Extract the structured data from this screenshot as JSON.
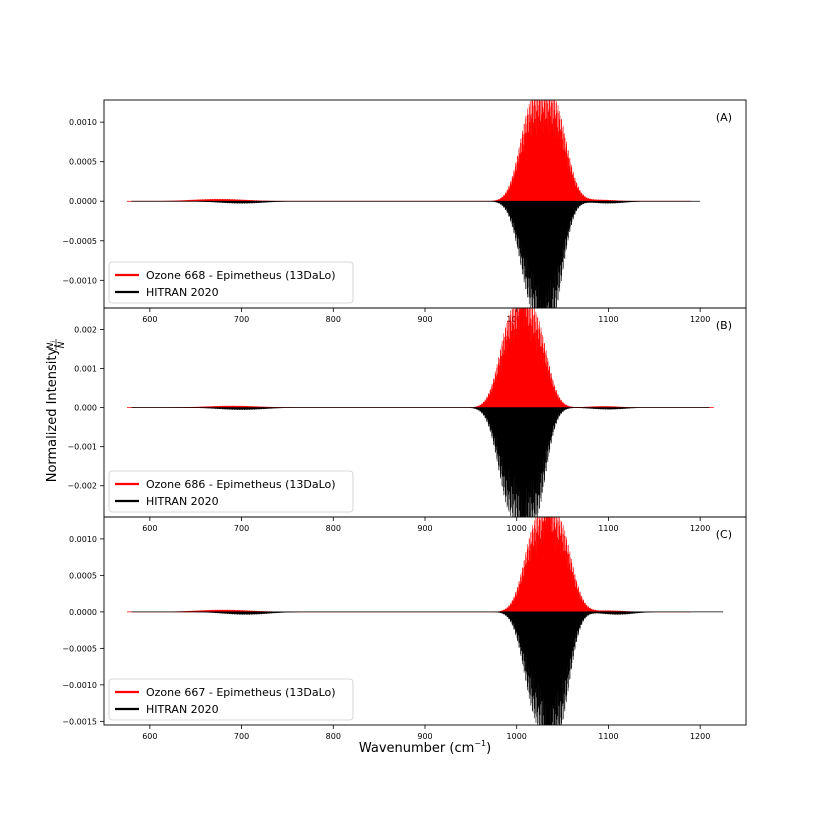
{
  "figure": {
    "ylabel_main": "Normalized Intensity, ",
    "ylabel_num": "N",
    "ylabel_num_sub": "i",
    "ylabel_den": "N",
    "xlabel_main": "Wavenumber (cm",
    "xlabel_sup": "−1",
    "xlabel_close": ")"
  },
  "chart_data": [
    {
      "type": "line",
      "panel_label": "(A)",
      "xlim": [
        550,
        1250
      ],
      "ylim": [
        -0.00135,
        0.00128
      ],
      "x_ticks": [
        600,
        700,
        800,
        900,
        1000,
        1100,
        1200
      ],
      "x_tick_labels": [
        "600",
        "700",
        "800",
        "900",
        "1000",
        "1100",
        "1200"
      ],
      "y_ticks": [
        0.001,
        0.0005,
        0.0,
        -0.0005,
        -0.001
      ],
      "y_tick_labels": [
        "0.0010",
        "0.0005",
        "0.0000",
        "−0.0005",
        "−0.0010"
      ],
      "legend_position": "lower-left",
      "series": [
        {
          "name": "Ozone 668 - Epimetheus (13DaLo)",
          "color": "#ff0000",
          "sign": 1,
          "x_range": [
            575,
            1190
          ],
          "bands": [
            {
              "center": 1016,
              "width": 13,
              "peak": 0.00115
            },
            {
              "center": 1042,
              "width": 13,
              "peak": 0.00115
            },
            {
              "center": 675,
              "width": 30,
              "peak": 3e-05
            },
            {
              "center": 1090,
              "width": 18,
              "peak": 2e-05
            }
          ]
        },
        {
          "name": "HITRAN 2020",
          "color": "#000000",
          "sign": -1,
          "x_range": [
            580,
            1200
          ],
          "bands": [
            {
              "center": 1016,
              "width": 13,
              "peak": 0.00118
            },
            {
              "center": 1039,
              "width": 12,
              "peak": 0.00133
            },
            {
              "center": 1028,
              "width": 3,
              "peak": 0.0004
            },
            {
              "center": 700,
              "width": 25,
              "peak": 3e-05
            },
            {
              "center": 1100,
              "width": 18,
              "peak": 3e-05
            }
          ]
        }
      ]
    },
    {
      "type": "line",
      "panel_label": "(B)",
      "xlim": [
        550,
        1250
      ],
      "ylim": [
        -0.0028,
        0.00255
      ],
      "x_ticks": [
        600,
        700,
        800,
        900,
        1000,
        1100,
        1200
      ],
      "x_tick_labels": [
        "600",
        "700",
        "800",
        "900",
        "1000",
        "1100",
        "1200"
      ],
      "y_ticks": [
        0.002,
        0.001,
        0.0,
        -0.001,
        -0.002
      ],
      "y_tick_labels": [
        "0.002",
        "0.001",
        "0.000",
        "−0.001",
        "−0.002"
      ],
      "legend_position": "lower-left",
      "series": [
        {
          "name": "Ozone 686 - Epimetheus (13DaLo)",
          "color": "#ff0000",
          "sign": 1,
          "x_range": [
            575,
            1215
          ],
          "bands": [
            {
              "center": 994,
              "width": 13,
              "peak": 0.00222
            },
            {
              "center": 1020,
              "width": 13,
              "peak": 0.00222
            },
            {
              "center": 1007,
              "width": 3,
              "peak": 0.0009
            },
            {
              "center": 690,
              "width": 30,
              "peak": 5e-05
            },
            {
              "center": 1095,
              "width": 18,
              "peak": 4e-05
            }
          ]
        },
        {
          "name": "HITRAN 2020",
          "color": "#000000",
          "sign": -1,
          "x_range": [
            580,
            1210
          ],
          "bands": [
            {
              "center": 993,
              "width": 13,
              "peak": 0.00255
            },
            {
              "center": 1020,
              "width": 12,
              "peak": 0.0027
            },
            {
              "center": 1007,
              "width": 3,
              "peak": 0.0009
            },
            {
              "center": 700,
              "width": 25,
              "peak": 6e-05
            },
            {
              "center": 1100,
              "width": 18,
              "peak": 5e-05
            }
          ]
        }
      ]
    },
    {
      "type": "line",
      "panel_label": "(C)",
      "xlim": [
        550,
        1250
      ],
      "ylim": [
        -0.00155,
        0.0013
      ],
      "x_ticks": [
        600,
        700,
        800,
        900,
        1000,
        1100,
        1200
      ],
      "x_tick_labels": [
        "600",
        "700",
        "800",
        "900",
        "1000",
        "1100",
        "1200"
      ],
      "y_ticks": [
        0.001,
        0.0005,
        0.0,
        -0.0005,
        -0.001,
        -0.0015
      ],
      "y_tick_labels": [
        "0.0010",
        "0.0005",
        "0.0000",
        "−0.0005",
        "−0.0010",
        "−0.0015"
      ],
      "legend_position": "lower-left",
      "series": [
        {
          "name": "Ozone 667 - Epimetheus (13DaLo)",
          "color": "#ff0000",
          "sign": 1,
          "x_range": [
            575,
            1190
          ],
          "bands": [
            {
              "center": 1021,
              "width": 13,
              "peak": 0.00115
            },
            {
              "center": 1047,
              "width": 13,
              "peak": 0.00115
            },
            {
              "center": 1034,
              "width": 3,
              "peak": 0.0004
            },
            {
              "center": 680,
              "width": 30,
              "peak": 3e-05
            },
            {
              "center": 1100,
              "width": 18,
              "peak": 2e-05
            }
          ]
        },
        {
          "name": "HITRAN 2020",
          "color": "#000000",
          "sign": -1,
          "x_range": [
            580,
            1225
          ],
          "bands": [
            {
              "center": 1021,
              "width": 13,
              "peak": 0.00135
            },
            {
              "center": 1046,
              "width": 12,
              "peak": 0.0015
            },
            {
              "center": 1034,
              "width": 3,
              "peak": 0.00055
            },
            {
              "center": 705,
              "width": 25,
              "peak": 4e-05
            },
            {
              "center": 1110,
              "width": 18,
              "peak": 4e-05
            }
          ]
        }
      ]
    }
  ]
}
